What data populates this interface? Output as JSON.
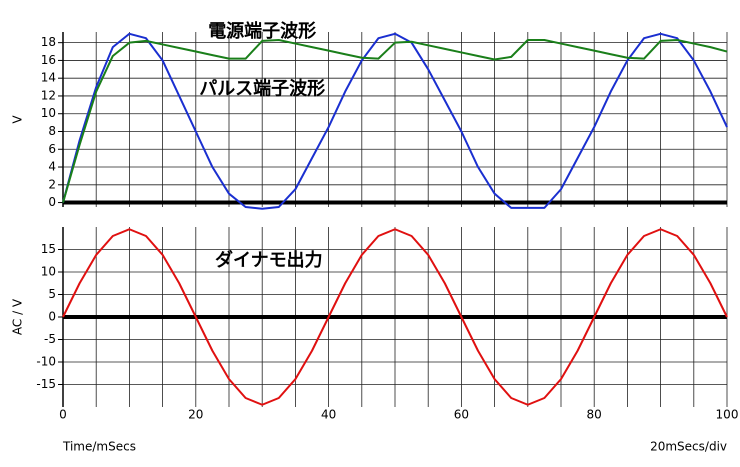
{
  "chart_data": [
    {
      "type": "line",
      "ylabel": "V",
      "annotations": [
        {
          "text": "電源端子波形",
          "color": "#1a7f1a",
          "x": 30,
          "y": 19.2
        },
        {
          "text": "パルス端子波形",
          "color": "#1a2fd0",
          "x": 30,
          "y": 12.7
        }
      ],
      "x": [
        0,
        2.5,
        5,
        7.5,
        10,
        12.5,
        15,
        17.5,
        20,
        22.5,
        25,
        27.5,
        30,
        32.5,
        35,
        37.5,
        40,
        42.5,
        45,
        47.5,
        50,
        52.5,
        55,
        57.5,
        60,
        62.5,
        65,
        67.5,
        70,
        72.5,
        75,
        77.5,
        80,
        82.5,
        85,
        87.5,
        90,
        92.5,
        95,
        97.5,
        100
      ],
      "series": [
        {
          "name": "パルス端子波形",
          "color": "#1a2fd0",
          "values": [
            0,
            7,
            13,
            17.5,
            19,
            18.5,
            16,
            12,
            8,
            4,
            1,
            -0.5,
            -0.7,
            -0.5,
            1.5,
            5,
            8.5,
            12.5,
            16,
            18.5,
            19,
            18,
            15,
            11.5,
            8,
            4,
            1,
            -0.6,
            -0.6,
            -0.6,
            1.5,
            5,
            8.5,
            12.5,
            16,
            18.5,
            19,
            18.5,
            16,
            12.5,
            8.5
          ]
        },
        {
          "name": "電源端子波形",
          "color": "#1a7f1a",
          "values": [
            0,
            6.5,
            12.5,
            16.5,
            18,
            18.2,
            17.8,
            17.4,
            17,
            16.6,
            16.2,
            16.2,
            18.2,
            18.3,
            17.9,
            17.5,
            17.1,
            16.7,
            16.3,
            16.2,
            18,
            18.1,
            17.7,
            17.3,
            16.9,
            16.5,
            16.1,
            16.4,
            18.3,
            18.3,
            17.9,
            17.5,
            17.1,
            16.7,
            16.3,
            16.2,
            18.2,
            18.3,
            17.9,
            17.5,
            17
          ]
        }
      ],
      "xlim": [
        0,
        100
      ],
      "xticks": [
        0,
        20,
        40,
        60,
        80,
        100
      ],
      "xtick_labels": false,
      "ylim": [
        -0.5,
        19.2
      ],
      "yticks": [
        0,
        2,
        4,
        6,
        8,
        10,
        12,
        14,
        16,
        18
      ],
      "grid": true
    },
    {
      "type": "line",
      "ylabel": "AC / V",
      "annotations": [
        {
          "text": "ダイナモ出力",
          "color": "#e01010",
          "x": 31,
          "y": 12.5
        }
      ],
      "x": [
        0,
        2.5,
        5,
        7.5,
        10,
        12.5,
        15,
        17.5,
        20,
        22.5,
        25,
        27.5,
        30,
        32.5,
        35,
        37.5,
        40,
        42.5,
        45,
        47.5,
        50,
        52.5,
        55,
        57.5,
        60,
        62.5,
        65,
        67.5,
        70,
        72.5,
        75,
        77.5,
        80,
        82.5,
        85,
        87.5,
        90,
        92.5,
        95,
        97.5,
        100
      ],
      "series": [
        {
          "name": "ダイナモ出力",
          "color": "#e01010",
          "values": [
            0,
            7.5,
            13.8,
            18,
            19.5,
            18,
            13.8,
            7.5,
            0,
            -7.5,
            -13.8,
            -18,
            -19.5,
            -18,
            -13.8,
            -7.5,
            0,
            7.5,
            13.8,
            18,
            19.5,
            18,
            13.8,
            7.5,
            0,
            -7.5,
            -13.8,
            -18,
            -19.5,
            -18,
            -13.8,
            -7.5,
            0,
            7.5,
            13.8,
            18,
            19.5,
            18,
            13.8,
            7.5,
            0
          ]
        }
      ],
      "xlim": [
        0,
        100
      ],
      "xticks": [
        0,
        20,
        40,
        60,
        80,
        100
      ],
      "xtick_labels": true,
      "xlabel": "Time/mSecs",
      "scale_note": "20mSecs/div",
      "ylim": [
        -20,
        20
      ],
      "yticks": [
        -15,
        -10,
        -5,
        0,
        5,
        10,
        15
      ],
      "grid": true
    }
  ]
}
